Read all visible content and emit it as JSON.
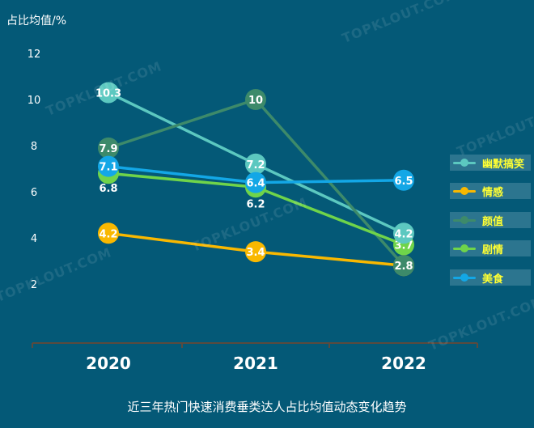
{
  "chart_data": {
    "type": "line",
    "ylabel": "占比均值/%",
    "ylim": [
      0,
      13
    ],
    "yticks": [
      2,
      4,
      6,
      8,
      10,
      12
    ],
    "categories": [
      "2020",
      "2021",
      "2022"
    ],
    "caption": "近三年热门快速消费垂类达人占比均值动态变化趋势",
    "series": [
      {
        "name": "幽默搞笑",
        "color": "#5cc8c0",
        "values": [
          10.3,
          7.2,
          4.2
        ]
      },
      {
        "name": "情感",
        "color": "#f9b800",
        "values": [
          4.2,
          3.4,
          2.8
        ]
      },
      {
        "name": "颜值",
        "color": "#3d8a6a",
        "values": [
          7.9,
          10,
          2.8
        ]
      },
      {
        "name": "剧情",
        "color": "#6fd44a",
        "values": [
          6.8,
          6.2,
          3.7
        ]
      },
      {
        "name": "美食",
        "color": "#13a7e6",
        "values": [
          7.1,
          6.4,
          6.5
        ]
      }
    ]
  },
  "watermark": "TOPKLOUT.COM"
}
